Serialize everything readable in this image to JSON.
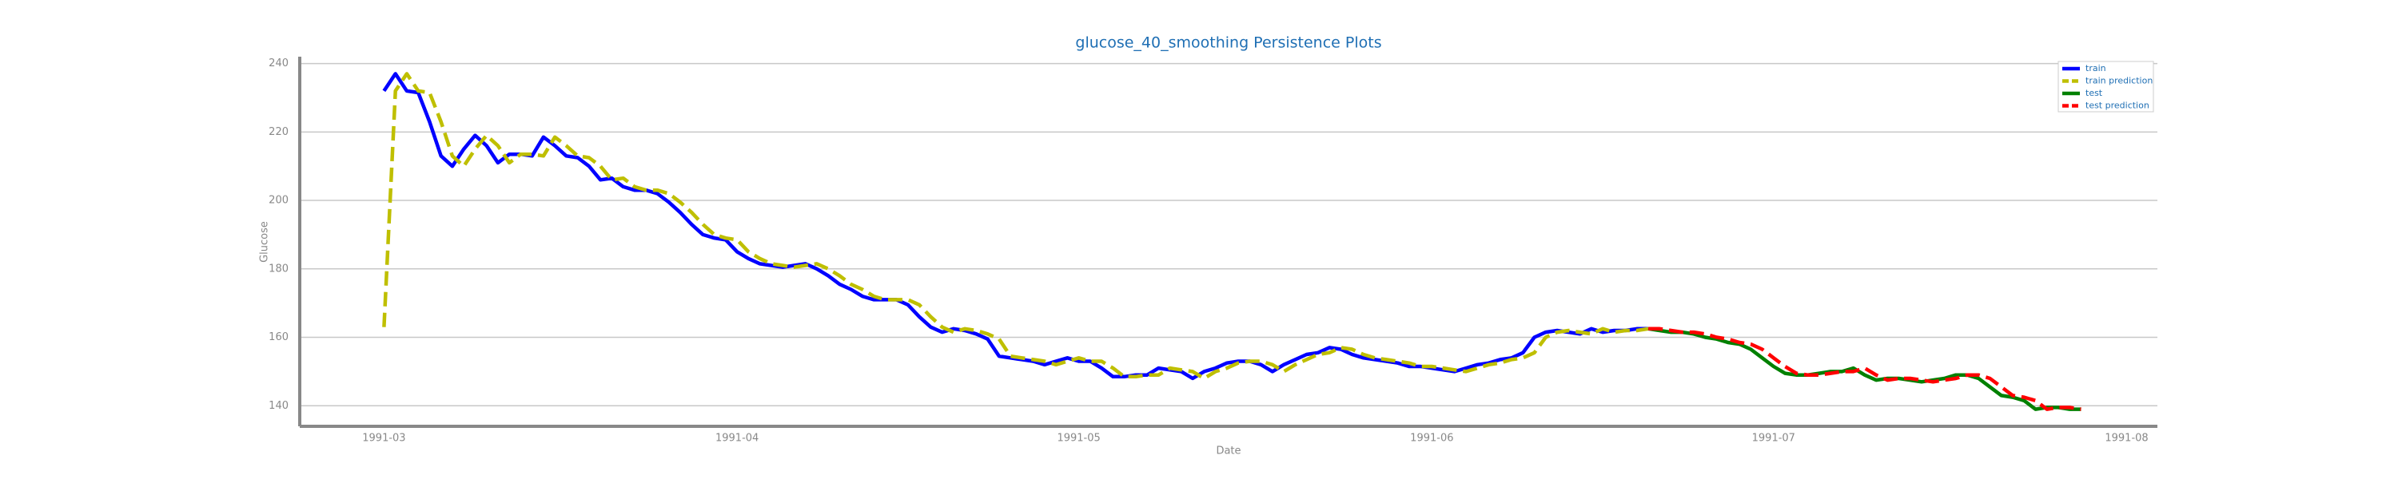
{
  "chart_data": {
    "type": "line",
    "title": "glucose_40_smoothing Persistence Plots",
    "x_label": "Date",
    "y_label": "Glucose",
    "categories": [
      "1991-03",
      null,
      null,
      null,
      null,
      null,
      null,
      null,
      null,
      null,
      null,
      null,
      null,
      null,
      null,
      null,
      null,
      null,
      null,
      null,
      null,
      null,
      null,
      null,
      null,
      null,
      null,
      null,
      null,
      null,
      null,
      "1991-04",
      null,
      null,
      null,
      null,
      null,
      null,
      null,
      null,
      null,
      null,
      null,
      null,
      null,
      null,
      null,
      null,
      null,
      null,
      null,
      null,
      null,
      null,
      null,
      null,
      null,
      null,
      null,
      null,
      null,
      "1991-05",
      null,
      null,
      null,
      null,
      null,
      null,
      null,
      null,
      null,
      null,
      null,
      null,
      null,
      null,
      null,
      null,
      null,
      null,
      null,
      null,
      null,
      null,
      null,
      null,
      null,
      null,
      null,
      null,
      null,
      null,
      "1991-06",
      null,
      null,
      null,
      null,
      null,
      null,
      null,
      null,
      null,
      null,
      null,
      null,
      null,
      null,
      null,
      null,
      null,
      null,
      null,
      null,
      null,
      null,
      null,
      null,
      null,
      null,
      null,
      null,
      null,
      "1991-07",
      null,
      null,
      null,
      null,
      null,
      null,
      null,
      null,
      null,
      null,
      null,
      null,
      null,
      null,
      null,
      null,
      null,
      null,
      null,
      null,
      null,
      null,
      null,
      null,
      null,
      null,
      null,
      null,
      null,
      null,
      "1991-08"
    ],
    "series": [
      {
        "name": "train",
        "color": "#0000ff",
        "linestyle": "solid",
        "values": [
          232,
          237,
          232,
          231.5,
          223,
          213,
          210,
          215,
          219,
          216,
          211,
          213.5,
          213.5,
          213,
          218.5,
          216,
          213,
          212.5,
          210,
          206,
          206.5,
          204,
          203,
          203,
          202,
          199.5,
          196.5,
          193,
          190,
          189,
          188.5,
          185,
          183,
          181.5,
          181,
          180.5,
          181,
          181.5,
          180,
          178,
          175.5,
          174,
          172,
          171,
          171,
          171,
          169.5,
          166,
          163,
          161.5,
          162.5,
          162,
          161,
          159.5,
          154.5,
          154,
          153.5,
          153,
          152,
          153,
          154,
          153,
          153,
          151,
          148.5,
          148.5,
          149,
          149,
          151,
          150.5,
          150,
          148,
          150,
          151,
          152.5,
          153,
          153,
          152,
          150,
          152,
          153.5,
          155,
          155.5,
          157,
          156.5,
          155,
          154,
          153.5,
          153,
          152.5,
          151.5,
          151.5,
          151,
          150.5,
          150,
          151,
          152,
          152.5,
          153.5,
          154,
          155.5,
          160,
          161.5,
          162,
          161.5,
          161,
          162.5,
          161.5,
          162,
          162,
          162.5,
          162.5,
          null,
          null,
          null,
          null,
          null,
          null,
          null,
          null,
          null,
          null,
          null,
          null,
          null,
          null,
          null,
          null,
          null,
          null,
          null,
          null,
          null,
          null,
          null,
          null,
          null,
          null,
          null,
          null,
          null,
          null,
          null,
          null,
          null,
          null,
          null,
          null,
          null,
          null,
          null,
          null,
          null,
          null
        ]
      },
      {
        "name": "train prediction",
        "color": "#bfbf00",
        "linestyle": "dashed",
        "values": [
          163,
          232,
          237,
          232,
          231.5,
          223,
          213,
          210,
          215,
          219,
          216,
          211,
          213.5,
          213.5,
          213,
          218.5,
          216,
          213,
          212.5,
          210,
          206,
          206.5,
          204,
          203,
          203,
          202,
          199.5,
          196.5,
          193,
          190,
          189,
          188.5,
          185,
          183,
          181.5,
          181,
          180.5,
          181,
          181.5,
          180,
          178,
          175.5,
          174,
          172,
          171,
          171,
          171,
          169.5,
          166,
          163,
          161.5,
          162.5,
          162,
          161,
          159.5,
          154.5,
          154,
          153.5,
          153,
          152,
          153,
          154,
          153,
          153,
          151,
          148.5,
          148.5,
          149,
          149,
          151,
          150.5,
          150,
          148,
          150,
          151,
          152.5,
          153,
          153,
          152,
          150,
          152,
          153.5,
          155,
          155.5,
          157,
          156.5,
          155,
          154,
          153.5,
          153,
          152.5,
          151.5,
          151.5,
          151,
          150.5,
          150,
          151,
          152,
          152.5,
          153.5,
          154,
          155.5,
          160,
          161.5,
          162,
          161.5,
          161,
          162.5,
          161.5,
          162,
          162,
          162.5,
          null,
          null,
          null,
          null,
          null,
          null,
          null,
          null,
          null,
          null,
          null,
          null,
          null,
          null,
          null,
          null,
          null,
          null,
          null,
          null,
          null,
          null,
          null,
          null,
          null,
          null,
          null,
          null,
          null,
          null,
          null,
          null,
          null,
          null,
          null,
          null,
          null,
          null,
          null,
          null,
          null,
          null
        ]
      },
      {
        "name": "test",
        "color": "#008000",
        "linestyle": "solid",
        "values": [
          null,
          null,
          null,
          null,
          null,
          null,
          null,
          null,
          null,
          null,
          null,
          null,
          null,
          null,
          null,
          null,
          null,
          null,
          null,
          null,
          null,
          null,
          null,
          null,
          null,
          null,
          null,
          null,
          null,
          null,
          null,
          null,
          null,
          null,
          null,
          null,
          null,
          null,
          null,
          null,
          null,
          null,
          null,
          null,
          null,
          null,
          null,
          null,
          null,
          null,
          null,
          null,
          null,
          null,
          null,
          null,
          null,
          null,
          null,
          null,
          null,
          null,
          null,
          null,
          null,
          null,
          null,
          null,
          null,
          null,
          null,
          null,
          null,
          null,
          null,
          null,
          null,
          null,
          null,
          null,
          null,
          null,
          null,
          null,
          null,
          null,
          null,
          null,
          null,
          null,
          null,
          null,
          null,
          null,
          null,
          null,
          null,
          null,
          null,
          null,
          null,
          null,
          null,
          null,
          null,
          null,
          null,
          null,
          null,
          null,
          null,
          162.5,
          162,
          161.5,
          161.5,
          161,
          160,
          159.5,
          158.5,
          158,
          156.5,
          154,
          151.5,
          149.5,
          149,
          149,
          149.5,
          150,
          150,
          151,
          149,
          147.5,
          148,
          148,
          147.5,
          147,
          147.5,
          148,
          149,
          149,
          148,
          145.5,
          143,
          142.5,
          141.5,
          139,
          139.5,
          139.5,
          139,
          139,
          null,
          null,
          null,
          null
        ]
      },
      {
        "name": "test prediction",
        "color": "#ff0000",
        "linestyle": "dashed",
        "values": [
          null,
          null,
          null,
          null,
          null,
          null,
          null,
          null,
          null,
          null,
          null,
          null,
          null,
          null,
          null,
          null,
          null,
          null,
          null,
          null,
          null,
          null,
          null,
          null,
          null,
          null,
          null,
          null,
          null,
          null,
          null,
          null,
          null,
          null,
          null,
          null,
          null,
          null,
          null,
          null,
          null,
          null,
          null,
          null,
          null,
          null,
          null,
          null,
          null,
          null,
          null,
          null,
          null,
          null,
          null,
          null,
          null,
          null,
          null,
          null,
          null,
          null,
          null,
          null,
          null,
          null,
          null,
          null,
          null,
          null,
          null,
          null,
          null,
          null,
          null,
          null,
          null,
          null,
          null,
          null,
          null,
          null,
          null,
          null,
          null,
          null,
          null,
          null,
          null,
          null,
          null,
          null,
          null,
          null,
          null,
          null,
          null,
          null,
          null,
          null,
          null,
          null,
          null,
          null,
          null,
          null,
          null,
          null,
          null,
          null,
          null,
          162.5,
          162.5,
          162,
          161.5,
          161.5,
          161,
          160,
          159.5,
          158.5,
          158,
          156.5,
          154,
          151.5,
          149.5,
          149,
          149,
          149.5,
          150,
          150,
          151,
          149,
          147.5,
          148,
          148,
          147.5,
          147,
          147.5,
          148,
          149,
          149,
          148,
          145.5,
          143,
          142.5,
          141.5,
          139,
          139.5,
          139.5,
          139,
          null,
          null,
          null,
          null
        ]
      }
    ],
    "ylim": [
      134,
      242
    ],
    "yticks": [
      140,
      160,
      180,
      200,
      220,
      240
    ],
    "grid": true,
    "legend": "upper right"
  }
}
